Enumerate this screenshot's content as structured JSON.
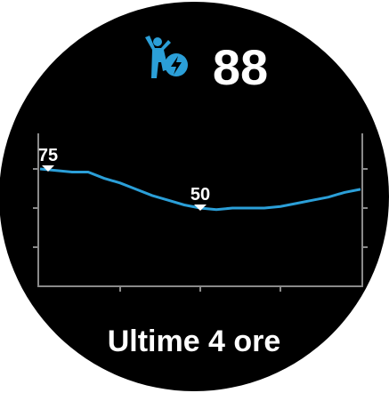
{
  "header": {
    "value": "88"
  },
  "chart_data": {
    "type": "line",
    "x": [
      0,
      0.2,
      0.4,
      0.6,
      0.8,
      1.0,
      1.2,
      1.4,
      1.6,
      1.8,
      2.0,
      2.2,
      2.4,
      2.6,
      2.8,
      3.0,
      3.2,
      3.4,
      3.6,
      3.8,
      4.0
    ],
    "series": [
      {
        "color": "#2b9fd8",
        "values": [
          75,
          74,
          73,
          73,
          69,
          66,
          62,
          58,
          55,
          52,
          50,
          49,
          50,
          50,
          50,
          51,
          53,
          55,
          57,
          60,
          62
        ]
      }
    ],
    "xlim": [
      0,
      4
    ],
    "ylim": [
      0,
      100
    ],
    "annotations": [
      {
        "text": "75",
        "x": 0.1,
        "y": 75
      },
      {
        "text": "50",
        "x": 2.0,
        "y": 50
      }
    ]
  },
  "footer": {
    "label": "Ultime 4 ore"
  }
}
